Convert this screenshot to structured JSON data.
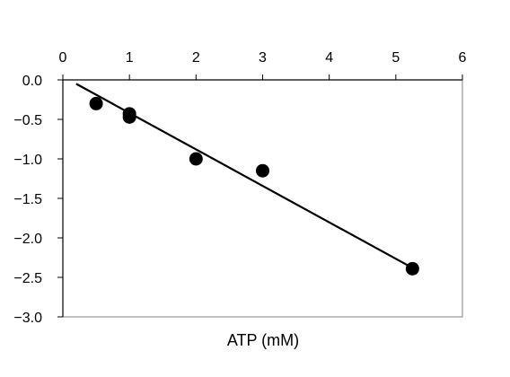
{
  "chart_data": {
    "type": "scatter",
    "xlabel": "ATP (mM)",
    "ylabel": "",
    "title": "",
    "xlim": [
      0,
      6
    ],
    "ylim": [
      -3.0,
      0.0
    ],
    "x_ticks": [
      0,
      1,
      2,
      3,
      4,
      5,
      6
    ],
    "x_tick_labels": [
      "0",
      "1",
      "2",
      "3",
      "4",
      "5",
      "6"
    ],
    "y_ticks": [
      0.0,
      -0.5,
      -1.0,
      -1.5,
      -2.0,
      -2.5,
      -3.0
    ],
    "y_tick_labels": [
      "0.0",
      "-0.5",
      "-1.0",
      "-1.5",
      "-2.0",
      "-2.5",
      "-3.0"
    ],
    "x_axis_position": "top",
    "grid": false,
    "legend": "none",
    "series": [
      {
        "points": [
          {
            "x": 0.5,
            "y": -0.3
          },
          {
            "x": 1.0,
            "y": -0.43
          },
          {
            "x": 1.0,
            "y": -0.47
          },
          {
            "x": 2.0,
            "y": -1.0
          },
          {
            "x": 3.0,
            "y": -1.15
          },
          {
            "x": 5.25,
            "y": -2.39
          }
        ],
        "color": "#000000"
      }
    ],
    "trendline": {
      "x_start": 0.2,
      "y_start": -0.05,
      "x_end": 5.25,
      "y_end": -2.38,
      "color": "#000000"
    }
  }
}
